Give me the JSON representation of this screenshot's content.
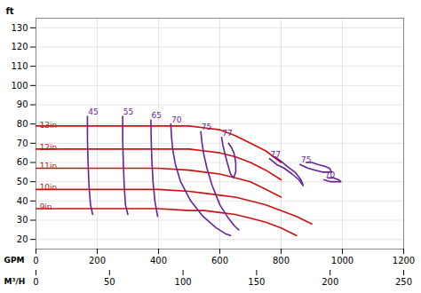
{
  "chart_data": {
    "type": "line",
    "ylabel": "ft",
    "xlabel": "GPM",
    "x2label": "M³/H",
    "xlim": [
      0,
      1200
    ],
    "xticks": [
      0,
      200,
      400,
      600,
      800,
      1000,
      1200
    ],
    "x2lim": [
      0,
      250
    ],
    "x2ticks": [
      0,
      50,
      100,
      150,
      200,
      250
    ],
    "ylim": [
      15,
      135
    ],
    "yticks": [
      20,
      30,
      40,
      50,
      60,
      70,
      80,
      90,
      100,
      110,
      120,
      130
    ],
    "grid": true,
    "series": [
      {
        "color": "#cc1111",
        "x": [
          0,
          50,
          100,
          150,
          200,
          300,
          400,
          500,
          550,
          600,
          650,
          700,
          750,
          800
        ],
        "values": [
          79,
          79,
          79,
          79,
          79,
          79,
          79,
          79,
          78,
          77,
          74,
          70,
          66,
          60
        ]
      },
      {
        "color": "#cc1111",
        "x": [
          0,
          100,
          200,
          300,
          400,
          500,
          550,
          600,
          650,
          700,
          750,
          800
        ],
        "values": [
          67,
          67,
          67,
          67,
          67,
          67,
          66,
          65,
          63,
          60,
          56,
          51
        ]
      },
      {
        "color": "#cc1111",
        "x": [
          0,
          100,
          200,
          300,
          400,
          500,
          550,
          600,
          650,
          700,
          750,
          800
        ],
        "values": [
          57,
          57,
          57,
          57,
          57,
          56,
          55,
          54,
          52,
          50,
          46,
          42
        ]
      },
      {
        "color": "#cc1111",
        "x": [
          0,
          100,
          200,
          300,
          400,
          500,
          550,
          600,
          650,
          700,
          750,
          800,
          850,
          900
        ],
        "values": [
          46,
          46,
          46,
          46,
          46,
          45,
          44,
          43,
          42,
          40,
          38,
          35,
          32,
          28
        ]
      },
      {
        "color": "#cc1111",
        "x": [
          0,
          100,
          200,
          300,
          400,
          500,
          550,
          600,
          650,
          700,
          750,
          800,
          850
        ],
        "values": [
          36,
          36,
          36,
          36,
          36,
          35,
          35,
          34,
          33,
          31,
          29,
          26,
          22
        ]
      },
      {
        "color": "#662299",
        "x": [
          168,
          168,
          170,
          173,
          178,
          185
        ],
        "values": [
          84,
          72,
          60,
          48,
          38,
          33
        ]
      },
      {
        "color": "#662299",
        "x": [
          283,
          283,
          285,
          288,
          292,
          300
        ],
        "values": [
          84,
          72,
          60,
          48,
          38,
          33
        ]
      },
      {
        "color": "#662299",
        "x": [
          375,
          376,
          378,
          382,
          388,
          397
        ],
        "values": [
          82,
          72,
          62,
          50,
          40,
          32
        ]
      },
      {
        "color": "#662299",
        "x": [
          440,
          442,
          446,
          455,
          472,
          505,
          545,
          588,
          618,
          635
        ],
        "values": [
          80,
          74,
          67,
          59,
          50,
          40,
          32,
          26,
          23,
          22
        ]
      },
      {
        "color": "#662299",
        "x": [
          538,
          542,
          548,
          558,
          575,
          600,
          628,
          648,
          662
        ],
        "values": [
          76,
          70,
          64,
          57,
          48,
          38,
          31,
          27,
          25
        ]
      },
      {
        "color": "#662299",
        "x": [
          606,
          610,
          616,
          624,
          635,
          645,
          652,
          652,
          646,
          637,
          628
        ],
        "values": [
          73,
          69,
          65,
          60,
          54,
          52,
          55,
          60,
          65,
          68,
          70
        ]
      },
      {
        "color": "#662299",
        "x": [
          762,
          785,
          810,
          836,
          858,
          872,
          865,
          845,
          820,
          797,
          780
        ],
        "values": [
          62,
          59,
          57,
          54,
          51,
          48,
          51,
          55,
          58,
          61,
          63
        ]
      },
      {
        "color": "#662299",
        "x": [
          862,
          888,
          912,
          935,
          955,
          965,
          958,
          942,
          920,
          900,
          882
        ],
        "values": [
          59,
          57,
          56,
          55,
          55,
          55,
          57,
          58,
          59,
          60,
          60
        ]
      },
      {
        "color": "#662299",
        "x": [
          940,
          962,
          982,
          995,
          988,
          970,
          952
        ],
        "values": [
          51,
          50,
          50,
          50,
          51,
          52,
          52
        ]
      }
    ],
    "annotations": [
      {
        "text": "13in",
        "x": 12,
        "y": 79.5,
        "color": "#cc1111"
      },
      {
        "text": "12in",
        "x": 12,
        "y": 68,
        "color": "#cc1111"
      },
      {
        "text": "11in",
        "x": 12,
        "y": 58,
        "color": "#cc1111"
      },
      {
        "text": "10in",
        "x": 12,
        "y": 47,
        "color": "#cc1111"
      },
      {
        "text": "9in",
        "x": 12,
        "y": 37,
        "color": "#cc1111"
      },
      {
        "text": "45",
        "x": 170,
        "y": 85,
        "color": "#662299"
      },
      {
        "text": "55",
        "x": 285,
        "y": 85,
        "color": "#662299"
      },
      {
        "text": "65",
        "x": 377,
        "y": 83,
        "color": "#662299"
      },
      {
        "text": "70",
        "x": 442,
        "y": 81,
        "color": "#662299"
      },
      {
        "text": "75",
        "x": 540,
        "y": 77,
        "color": "#662299"
      },
      {
        "text": "77",
        "x": 608,
        "y": 74,
        "color": "#662299"
      },
      {
        "text": "77",
        "x": 765,
        "y": 63,
        "color": "#662299"
      },
      {
        "text": "75",
        "x": 865,
        "y": 60,
        "color": "#662299"
      },
      {
        "text": "70",
        "x": 943,
        "y": 52,
        "color": "#662299"
      }
    ]
  }
}
